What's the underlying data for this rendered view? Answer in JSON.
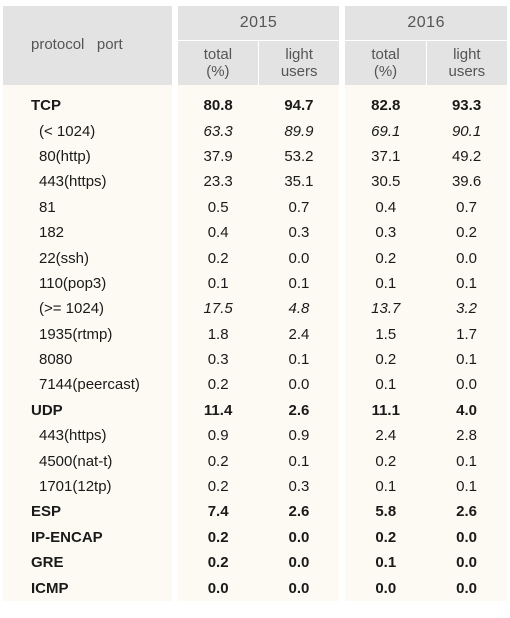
{
  "header": {
    "protocol_port_label": "protocol   port",
    "years": [
      "2015",
      "2016"
    ],
    "subheaders": {
      "total": "total",
      "total_unit": "(%)",
      "light": "light",
      "light_unit": "users"
    }
  },
  "rows": [
    {
      "label": "TCP",
      "values": [
        "80.8",
        "94.7",
        "82.8",
        "93.3"
      ]
    },
    {
      "label": "(< 1024)",
      "values": [
        "63.3",
        "89.9",
        "69.1",
        "90.1"
      ]
    },
    {
      "label": "80(http)",
      "values": [
        "37.9",
        "53.2",
        "37.1",
        "49.2"
      ]
    },
    {
      "label": "443(https)",
      "values": [
        "23.3",
        "35.1",
        "30.5",
        "39.6"
      ]
    },
    {
      "label": "81",
      "values": [
        "0.5",
        "0.7",
        "0.4",
        "0.7"
      ]
    },
    {
      "label": "182",
      "values": [
        "0.4",
        "0.3",
        "0.3",
        "0.2"
      ]
    },
    {
      "label": "22(ssh)",
      "values": [
        "0.2",
        "0.0",
        "0.2",
        "0.0"
      ]
    },
    {
      "label": "110(pop3)",
      "values": [
        "0.1",
        "0.1",
        "0.1",
        "0.1"
      ]
    },
    {
      "label": "(>= 1024)",
      "values": [
        "17.5",
        "4.8",
        "13.7",
        "3.2"
      ]
    },
    {
      "label": "1935(rtmp)",
      "values": [
        "1.8",
        "2.4",
        "1.5",
        "1.7"
      ]
    },
    {
      "label": "8080",
      "values": [
        "0.3",
        "0.1",
        "0.2",
        "0.1"
      ]
    },
    {
      "label": "7144(peercast)",
      "values": [
        "0.2",
        "0.0",
        "0.1",
        "0.0"
      ]
    },
    {
      "label": "UDP",
      "values": [
        "11.4",
        "2.6",
        "11.1",
        "4.0"
      ]
    },
    {
      "label": "443(https)",
      "values": [
        "0.9",
        "0.9",
        "2.4",
        "2.8"
      ]
    },
    {
      "label": "4500(nat-t)",
      "values": [
        "0.2",
        "0.1",
        "0.2",
        "0.1"
      ]
    },
    {
      "label": "1701(12tp)",
      "values": [
        "0.2",
        "0.3",
        "0.1",
        "0.1"
      ]
    },
    {
      "label": "ESP",
      "values": [
        "7.4",
        "2.6",
        "5.8",
        "2.6"
      ]
    },
    {
      "label": "IP-ENCAP",
      "values": [
        "0.2",
        "0.0",
        "0.2",
        "0.0"
      ]
    },
    {
      "label": "GRE",
      "values": [
        "0.2",
        "0.0",
        "0.1",
        "0.0"
      ]
    },
    {
      "label": "ICMP",
      "values": [
        "0.0",
        "0.0",
        "0.0",
        "0.0"
      ]
    }
  ]
}
